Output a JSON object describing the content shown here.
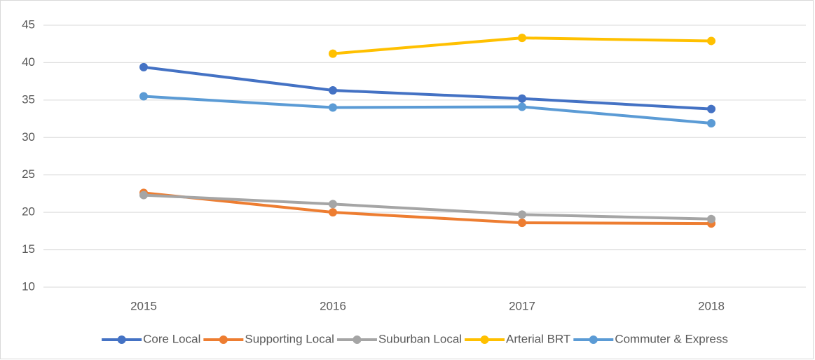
{
  "chart_data": {
    "type": "line",
    "categories": [
      "2015",
      "2016",
      "2017",
      "2018"
    ],
    "series": [
      {
        "name": "Core Local",
        "color": "#4472c4",
        "values": [
          39.4,
          36.3,
          35.2,
          33.8
        ]
      },
      {
        "name": "Supporting Local",
        "color": "#ed7d31",
        "values": [
          22.6,
          20.0,
          18.6,
          18.5
        ]
      },
      {
        "name": "Suburban Local",
        "color": "#a5a5a5",
        "values": [
          22.3,
          21.1,
          19.7,
          19.1
        ]
      },
      {
        "name": "Arterial BRT",
        "color": "#ffc000",
        "values": [
          null,
          41.2,
          43.3,
          42.9
        ]
      },
      {
        "name": "Commuter & Express",
        "color": "#5b9bd5",
        "values": [
          35.5,
          34.0,
          34.1,
          31.9
        ]
      }
    ],
    "ylim": [
      10,
      45
    ],
    "yticks": [
      10,
      15,
      20,
      25,
      30,
      35,
      40,
      45
    ],
    "grid": true,
    "legend": "bottom"
  }
}
